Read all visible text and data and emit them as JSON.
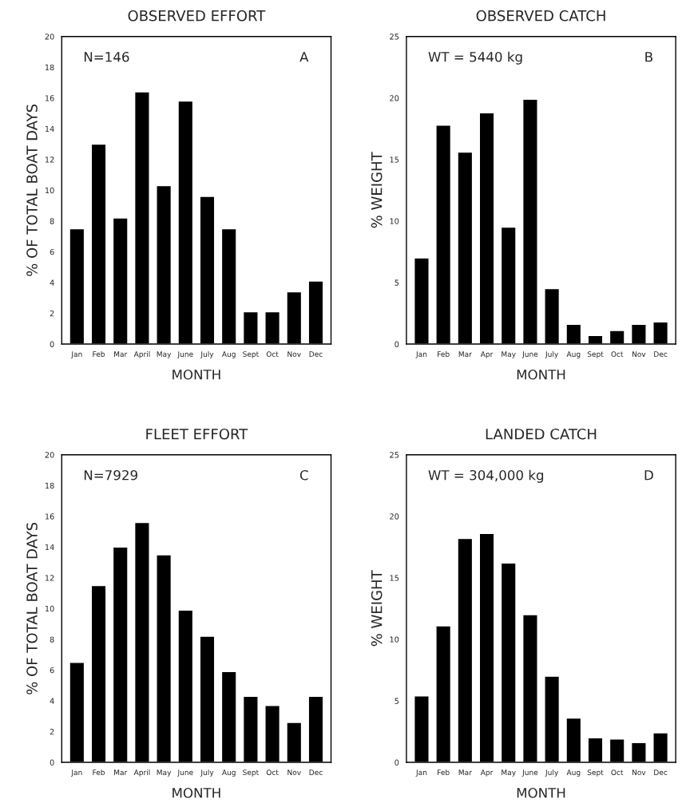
{
  "chart_data": [
    {
      "type": "bar",
      "title": "OBSERVED EFFORT",
      "xlabel": "MONTH",
      "ylabel": "% OF TOTAL BOAT DAYS",
      "categories": [
        "Jan",
        "Feb",
        "Mar",
        "April",
        "May",
        "June",
        "July",
        "Aug",
        "Sept",
        "Oct",
        "Nov",
        "Dec"
      ],
      "values": [
        7.5,
        13.0,
        8.2,
        16.4,
        10.3,
        15.8,
        9.6,
        7.5,
        2.1,
        2.1,
        3.4,
        4.1
      ],
      "color": "#000000",
      "ylim": [
        0,
        20
      ],
      "yticks": [
        0,
        2,
        4,
        6,
        8,
        10,
        12,
        14,
        16,
        18,
        20
      ],
      "annotations": [
        "N=146",
        "A"
      ]
    },
    {
      "type": "bar",
      "title": "OBSERVED CATCH",
      "xlabel": "MONTH",
      "ylabel": "% WEIGHT",
      "categories": [
        "Jan",
        "Feb",
        "Mar",
        "Apr",
        "May",
        "June",
        "July",
        "Aug",
        "Sept",
        "Oct",
        "Nov",
        "Dec"
      ],
      "values": [
        7.0,
        17.8,
        15.6,
        18.8,
        9.5,
        19.9,
        4.5,
        1.6,
        0.7,
        1.1,
        1.6,
        1.8
      ],
      "color": "#000000",
      "ylim": [
        0,
        25
      ],
      "yticks": [
        0,
        5,
        10,
        15,
        20,
        25
      ],
      "annotations": [
        "WT = 5440 kg",
        "B"
      ]
    },
    {
      "type": "bar",
      "title": "FLEET EFFORT",
      "xlabel": "MONTH",
      "ylabel": "% OF TOTAL BOAT DAYS",
      "categories": [
        "Jan",
        "Feb",
        "Mar",
        "April",
        "May",
        "June",
        "July",
        "Aug",
        "Sept",
        "Oct",
        "Nov",
        "Dec"
      ],
      "values": [
        6.5,
        11.5,
        14.0,
        15.6,
        13.5,
        9.9,
        8.2,
        5.9,
        4.3,
        3.7,
        2.6,
        4.3
      ],
      "color": "#000000",
      "ylim": [
        0,
        20
      ],
      "yticks": [
        0,
        2,
        4,
        6,
        8,
        10,
        12,
        14,
        16,
        18,
        20
      ],
      "annotations": [
        "N=7929",
        "C"
      ]
    },
    {
      "type": "bar",
      "title": "LANDED CATCH",
      "xlabel": "MONTH",
      "ylabel": "% WEIGHT",
      "categories": [
        "Jan",
        "Feb",
        "Mar",
        "Apr",
        "May",
        "June",
        "July",
        "Aug",
        "Sept",
        "Oct",
        "Nov",
        "Dec"
      ],
      "values": [
        5.4,
        11.1,
        18.2,
        18.6,
        16.2,
        12.0,
        7.0,
        3.6,
        2.0,
        1.9,
        1.6,
        2.4
      ],
      "color": "#000000",
      "ylim": [
        0,
        25
      ],
      "yticks": [
        0,
        5,
        10,
        15,
        20,
        25
      ],
      "annotations": [
        "WT = 304,000 kg",
        "D"
      ]
    }
  ]
}
